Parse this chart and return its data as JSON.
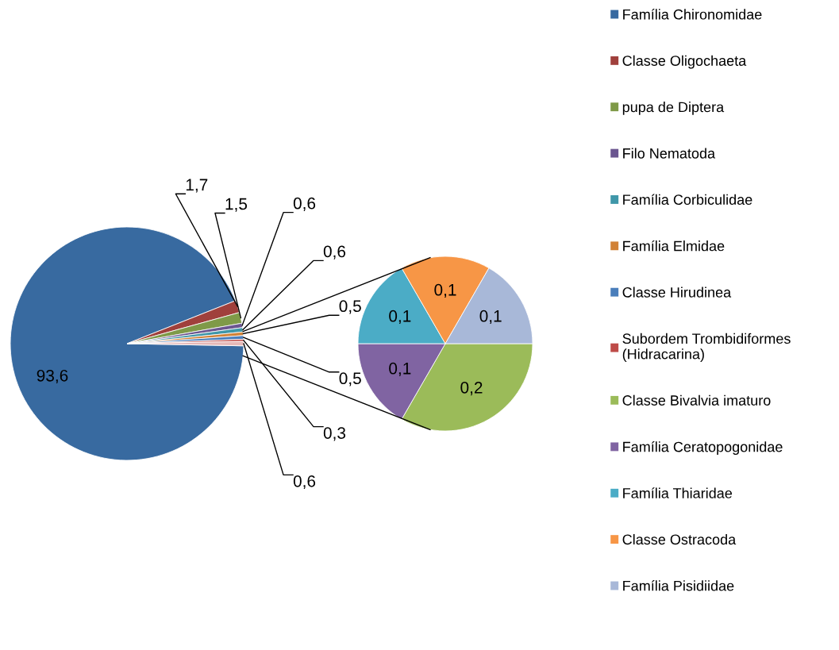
{
  "chart_data": [
    {
      "type": "pie",
      "categories": [
        "Família Chironomidae",
        "Classe Oligochaeta",
        "pupa de Diptera",
        "Filo Nematoda",
        "Família Corbiculidae",
        "Família Elmidae",
        "Classe Hirudinea",
        "Subordem Trombidiformes (Hidracarina)",
        null
      ],
      "values": [
        93.6,
        1.7,
        1.5,
        0.6,
        0.6,
        0.5,
        0.5,
        0.3,
        0.6
      ],
      "value_labels": [
        "93,6",
        "1,7",
        "1,5",
        "0,6",
        "0,6",
        "0,5",
        "0,5",
        "0,3",
        "0,6"
      ],
      "colors": [
        "#386aa0",
        "#a0403c",
        "#7f9a48",
        "#6b5690",
        "#3f97a9",
        "#d18237",
        "#4a7ebb",
        "#be4b48",
        "#e6b9b8"
      ],
      "legend": "right"
    },
    {
      "type": "pie",
      "categories": [
        "Classe Bivalvia imaturo",
        "Família Ceratopogonidae",
        "Família Thiaridae",
        "Classe Ostracoda",
        "Família Pisidiidae"
      ],
      "values": [
        0.2,
        0.1,
        0.1,
        0.1,
        0.1
      ],
      "value_labels": [
        "0,2",
        "0,1",
        "0,1",
        "0,1",
        "0,1"
      ],
      "colors": [
        "#9bbb59",
        "#8064a2",
        "#4bacc6",
        "#f79646",
        "#a8b8d8"
      ],
      "legend": "right"
    }
  ]
}
